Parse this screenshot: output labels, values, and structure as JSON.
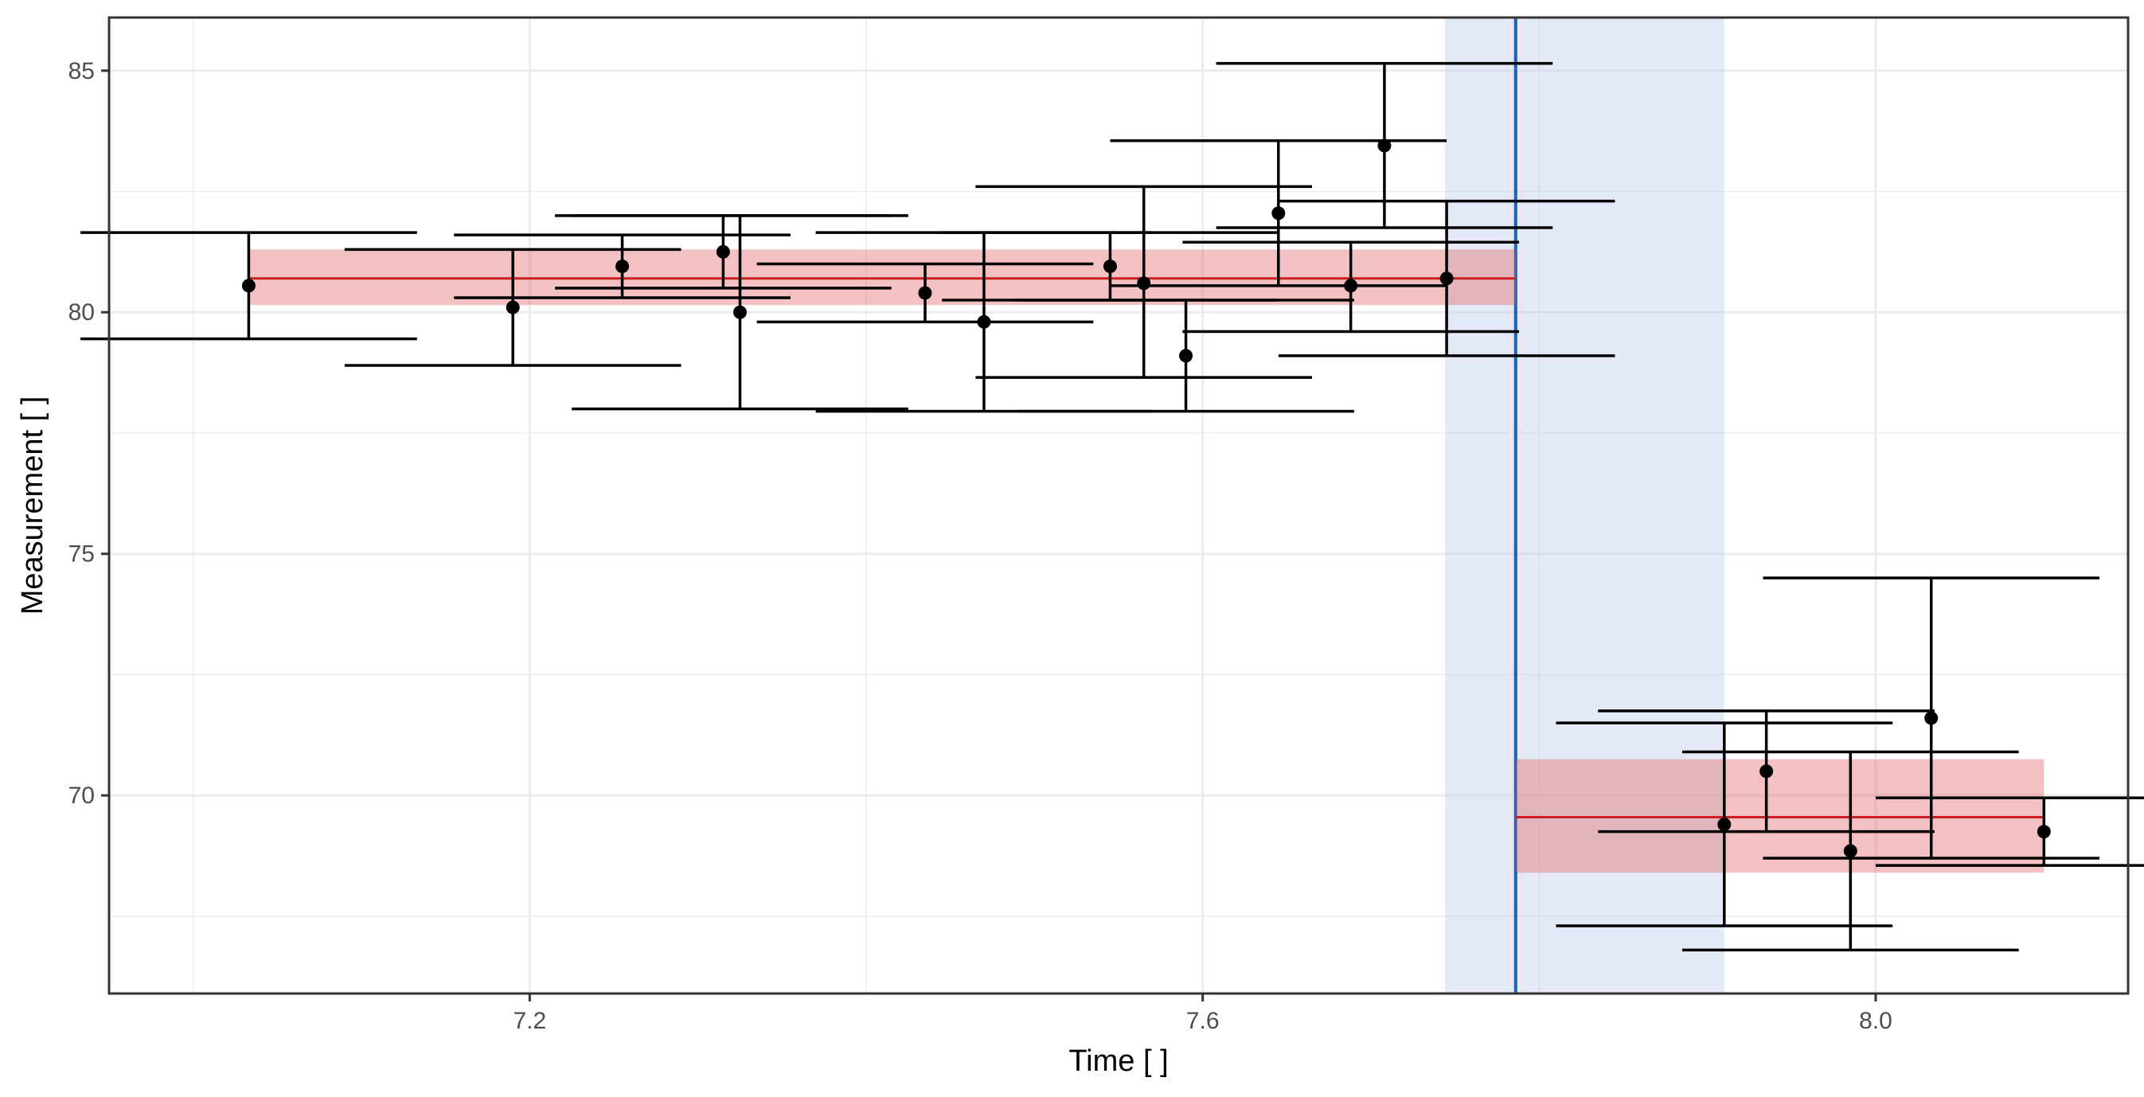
{
  "chart_data": {
    "type": "scatter",
    "xlabel": "Time [ ]",
    "ylabel": "Measurement [ ]",
    "xlim": [
      6.95,
      8.15
    ],
    "ylim": [
      65.9,
      86.1
    ],
    "x_ticks": [
      7.2,
      7.6,
      8.0
    ],
    "x_tick_labels": [
      "7.2",
      "7.6",
      "8.0"
    ],
    "y_ticks": [
      70,
      75,
      80,
      85
    ],
    "y_tick_labels": [
      "70",
      "75",
      "80",
      "85"
    ],
    "grid": true,
    "points": [
      {
        "x": 7.033,
        "y": 80.55,
        "xerr": 0.1,
        "ylo": 79.45,
        "yhi": 81.65
      },
      {
        "x": 7.19,
        "y": 80.1,
        "xerr": 0.1,
        "ylo": 78.9,
        "yhi": 81.3
      },
      {
        "x": 7.255,
        "y": 80.95,
        "xerr": 0.1,
        "ylo": 80.3,
        "yhi": 81.6
      },
      {
        "x": 7.315,
        "y": 81.25,
        "xerr": 0.1,
        "ylo": 80.5,
        "yhi": 82.0
      },
      {
        "x": 7.325,
        "y": 80.0,
        "xerr": 0.1,
        "ylo": 78.0,
        "yhi": 82.0
      },
      {
        "x": 7.435,
        "y": 80.4,
        "xerr": 0.1,
        "ylo": 79.8,
        "yhi": 81.0
      },
      {
        "x": 7.47,
        "y": 79.8,
        "xerr": 0.1,
        "ylo": 77.95,
        "yhi": 81.65
      },
      {
        "x": 7.545,
        "y": 80.95,
        "xerr": 0.1,
        "ylo": 80.25,
        "yhi": 81.65
      },
      {
        "x": 7.565,
        "y": 80.6,
        "xerr": 0.1,
        "ylo": 78.65,
        "yhi": 82.6
      },
      {
        "x": 7.59,
        "y": 79.1,
        "xerr": 0.1,
        "ylo": 77.95,
        "yhi": 80.25
      },
      {
        "x": 7.645,
        "y": 82.05,
        "xerr": 0.1,
        "ylo": 80.55,
        "yhi": 83.55
      },
      {
        "x": 7.688,
        "y": 80.55,
        "xerr": 0.1,
        "ylo": 79.6,
        "yhi": 81.45
      },
      {
        "x": 7.708,
        "y": 83.45,
        "xerr": 0.1,
        "ylo": 81.75,
        "yhi": 85.15
      },
      {
        "x": 7.745,
        "y": 80.7,
        "xerr": 0.1,
        "ylo": 79.1,
        "yhi": 82.3
      },
      {
        "x": 7.91,
        "y": 69.4,
        "xerr": 0.1,
        "ylo": 67.3,
        "yhi": 71.5
      },
      {
        "x": 7.935,
        "y": 70.5,
        "xerr": 0.1,
        "ylo": 69.25,
        "yhi": 71.75
      },
      {
        "x": 7.985,
        "y": 68.85,
        "xerr": 0.1,
        "ylo": 66.8,
        "yhi": 70.9
      },
      {
        "x": 8.033,
        "y": 71.6,
        "xerr": 0.1,
        "ylo": 68.7,
        "yhi": 74.5
      },
      {
        "x": 8.1,
        "y": 69.25,
        "xerr": 0.1,
        "ylo": 68.55,
        "yhi": 69.95
      }
    ],
    "segments": [
      {
        "x_start": 7.033,
        "x_end": 7.786,
        "mean": 80.7,
        "lo": 80.15,
        "hi": 81.3
      },
      {
        "x_start": 7.786,
        "x_end": 8.1,
        "mean": 69.55,
        "lo": 68.4,
        "hi": 70.75
      }
    ],
    "changepoint": {
      "x": 7.786,
      "lo": 7.744,
      "hi": 7.91
    },
    "colors": {
      "points": "#000000",
      "segment_line": "#cc1f1f",
      "segment_band": "#e06464",
      "changepoint_line": "#1f5fb4",
      "changepoint_band": "#c8d4f0",
      "grid": "#ebebeb",
      "panel_border": "#333333"
    }
  }
}
